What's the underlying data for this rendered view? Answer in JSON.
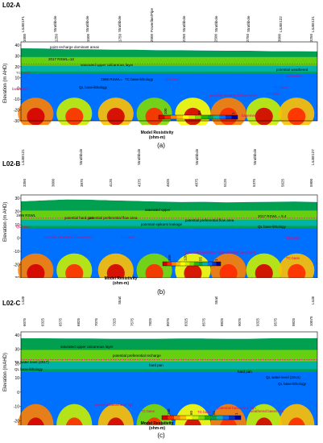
{
  "colorscale": [
    "#d40000",
    "#ff2a00",
    "#ff7f00",
    "#ffc000",
    "#ffff00",
    "#c8f000",
    "#7fdc00",
    "#2ab400",
    "#00a050",
    "#00b4b4",
    "#0070ff",
    "#0038d0",
    "#0000a0"
  ],
  "panels": [
    {
      "id": "A",
      "title": "L02-A",
      "caption": "(a)",
      "ylabel": "Elevation (m AHD)",
      "yticks": [
        "40",
        "30",
        "20",
        "10",
        "0",
        "-10",
        "-20",
        "-30"
      ],
      "top_labels": [
        "LILBE1F1",
        "Strathbole",
        "Strathbole",
        "Strathbole",
        "Powerline/Pipe",
        "Strathbole",
        "Strathbole",
        "Strathbole",
        "LILBE122",
        "LILBE121"
      ],
      "xticks": [
        "1000",
        "1250",
        "1500",
        "1750",
        "2000",
        "2250",
        "2500",
        "2750",
        "3000",
        "3250"
      ],
      "annotations": [
        "2017 RSWL=12",
        "point recharge dominant areas",
        "saturated upper calcareous layer",
        "1996 RSWL=",
        "QL base-lithology",
        "TC base-lithology",
        "QL base",
        "possible weathered basement",
        "TC base",
        "potential weathered",
        "basement",
        "basement",
        "TC base",
        "TC base",
        "basement"
      ],
      "legend_title": "Model Resistivity\n(ohm-m)",
      "legend_ticks": [
        "100",
        "55",
        "1"
      ]
    },
    {
      "id": "B",
      "title": "L02-B",
      "caption": "(b)",
      "ylabel": "Elevation (m AHD)",
      "yticks": [
        "30",
        "20",
        "10",
        "0",
        "-10",
        "-20",
        "-30"
      ],
      "top_labels": [
        "LILBE121",
        "Strathbole",
        "Strathbole",
        "Strathbole",
        "Strathbole",
        "LILBE127"
      ],
      "xticks": [
        "3350",
        "3600",
        "3875",
        "4125",
        "4375",
        "4625",
        "4875",
        "5125",
        "5375",
        "5625",
        "5900"
      ],
      "annotations": [
        "saturated upper",
        "potential hard pan",
        "potential preferential flow area",
        "potential epikarst leakage",
        "potential preferential flow area",
        "1996 RSWL",
        "QL base",
        "2017 RSWL = 5.4",
        "QL base-lithology",
        "TC base",
        "possible weathered basement",
        "TC base",
        "potential basement high",
        "weathered basement",
        "TC base"
      ],
      "legend_title": "Model Resistivity\n(ohm-m)",
      "legend_ticks": [
        "100",
        "120",
        "55",
        "1"
      ]
    },
    {
      "id": "C",
      "title": "L02-C",
      "caption": "(c)",
      "ylabel": "Elevation (mAHD)",
      "yticks": [
        "40",
        "30",
        "20",
        "10",
        "0",
        "-10",
        "-20",
        "-30"
      ],
      "top_labels": [
        "LILBE127",
        "Strathbole",
        "Strathbole",
        "LILBE082"
      ],
      "xticks": [
        "6075",
        "6325",
        "6575",
        "6825",
        "7075",
        "7325",
        "7575",
        "7825",
        "8075",
        "8325",
        "8575",
        "8825",
        "9075",
        "9325",
        "9575",
        "9825",
        "10075"
      ],
      "annotations": [
        "saturated upper calcareous layer",
        "TS water level (2017)",
        "QL base-lithology",
        "potential preferential recharge",
        "hard pan",
        "hard pan",
        "QL water level (2016)",
        "QL base-lithology",
        "potential basement high",
        "TC base",
        "potential basement high",
        "TC base",
        "weathered basement"
      ],
      "legend_title": "Model Resistivity\n(ohm-m)",
      "legend_ticks": [
        "100",
        "60",
        "55",
        "1"
      ]
    }
  ]
}
